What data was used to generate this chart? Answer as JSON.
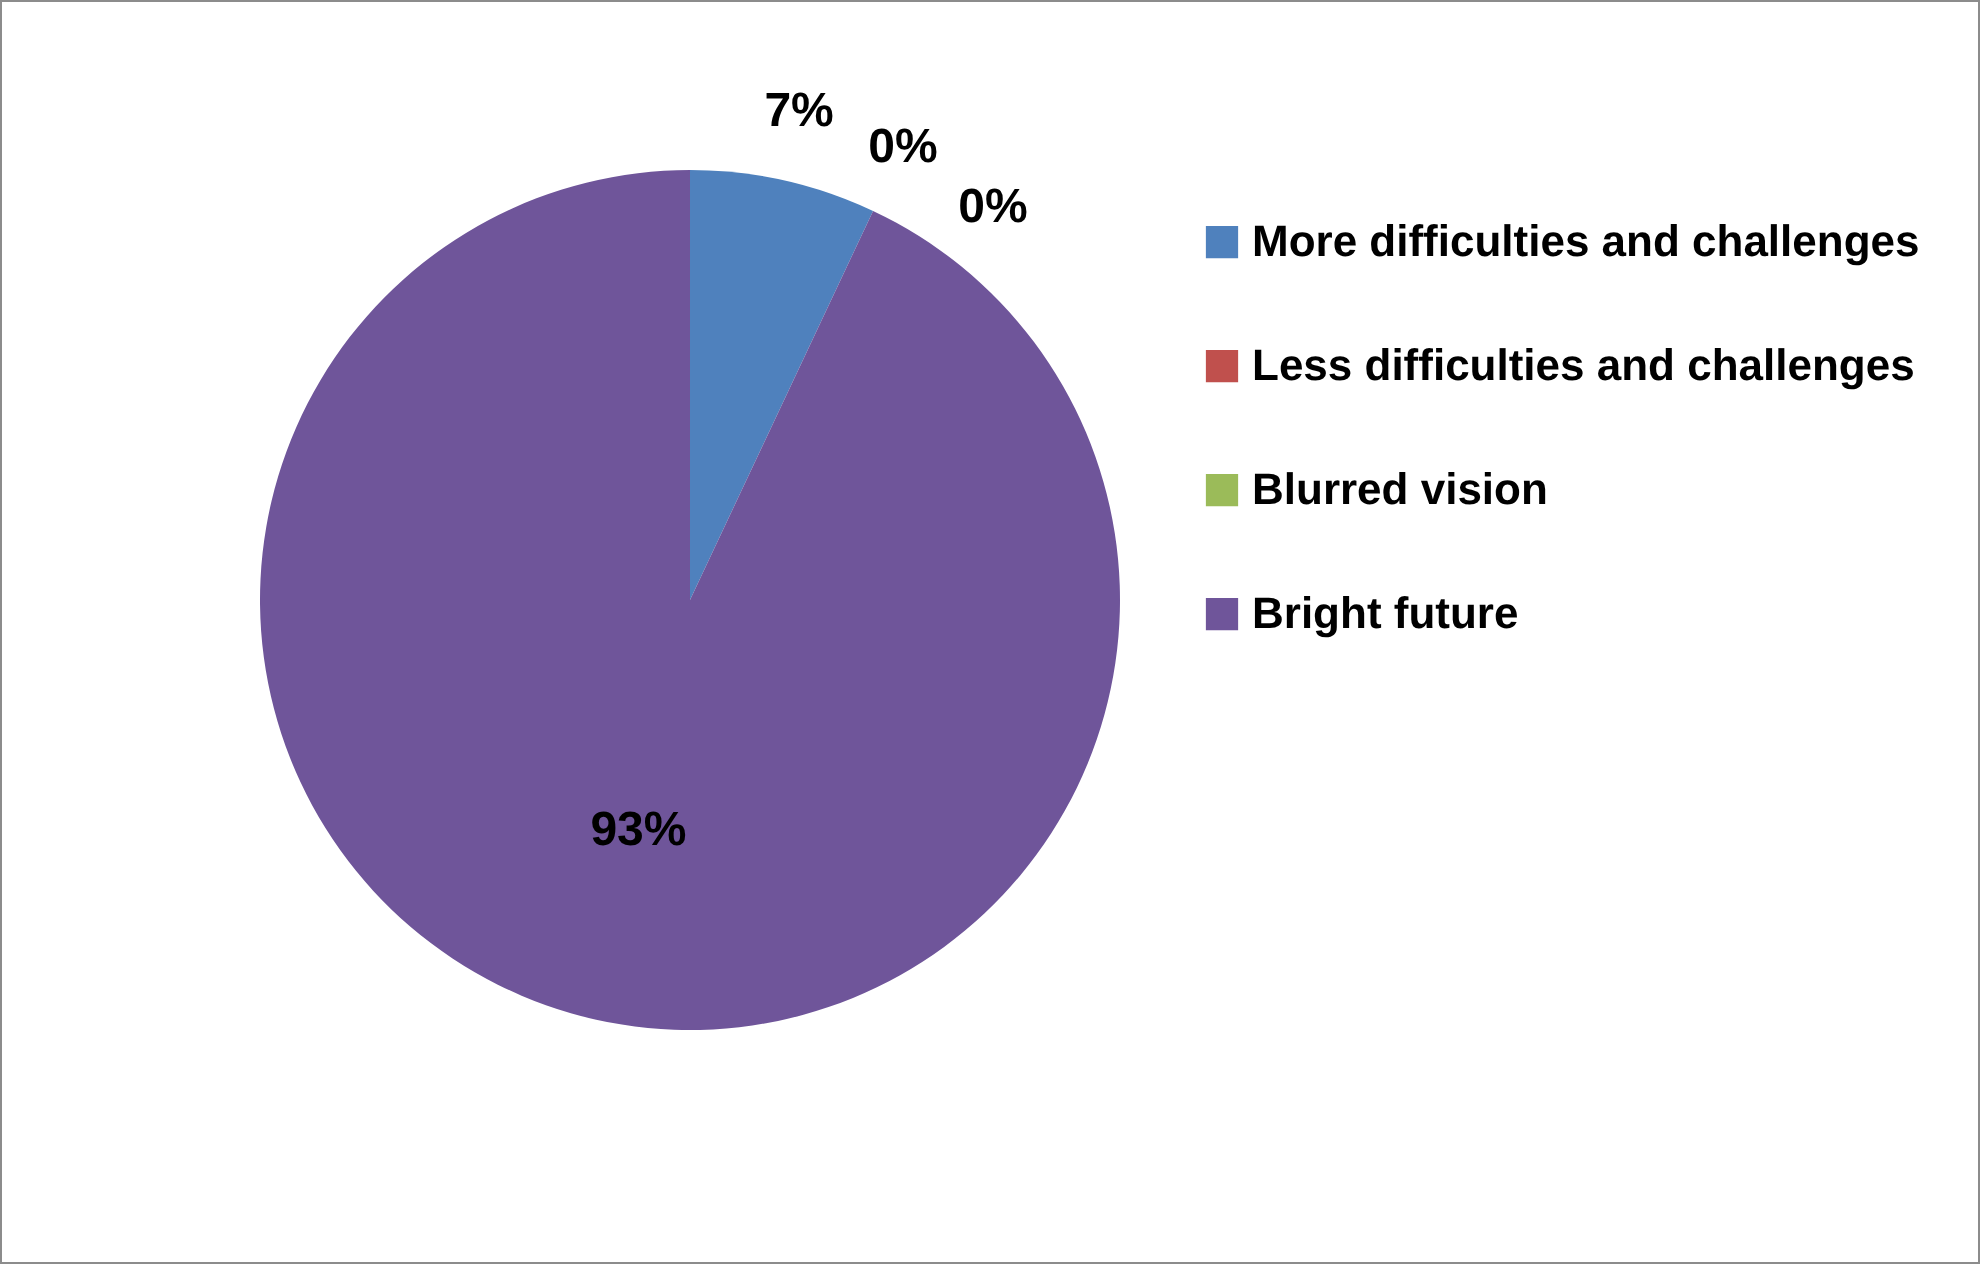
{
  "chart_data": {
    "type": "pie",
    "categories": [
      "More difficulties and challenges",
      "Less difficulties and challenges",
      "Blurred vision",
      "Bright future"
    ],
    "values": [
      7,
      0,
      0,
      93
    ],
    "colors": [
      "#4f81bd",
      "#c0504d",
      "#9bbb59",
      "#6f559a"
    ],
    "value_labels": [
      "7%",
      "0%",
      "0%",
      "93%"
    ],
    "legend": "right"
  }
}
